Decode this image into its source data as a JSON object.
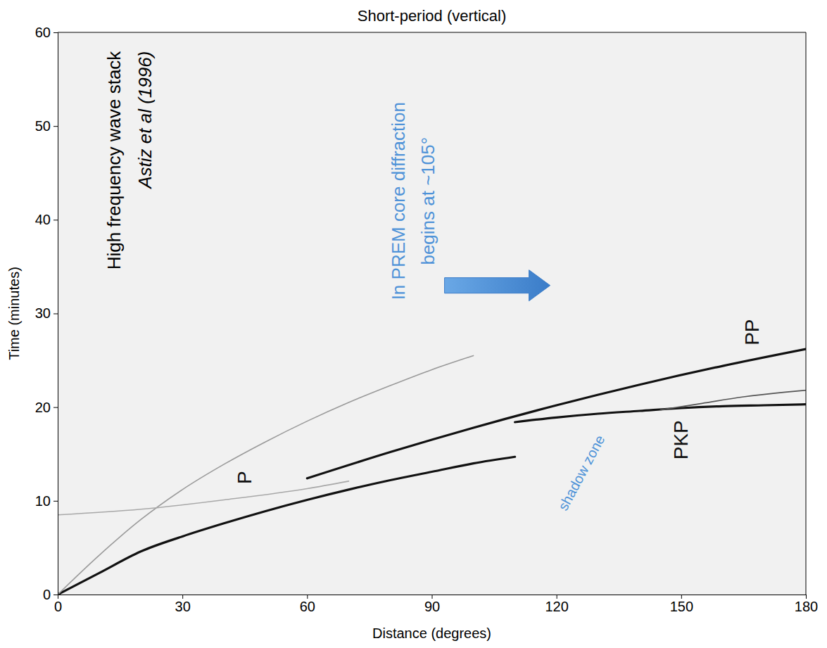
{
  "chart_data": {
    "type": "line",
    "title": "Short-period (vertical)",
    "x_label": "Distance (degrees)",
    "y_label": "Time (minutes)",
    "xlim": [
      0,
      180
    ],
    "xticks": [
      0,
      30,
      60,
      90,
      120,
      150,
      180
    ],
    "ylim": [
      0,
      60
    ],
    "yticks": [
      0,
      10,
      20,
      30,
      40,
      50,
      60
    ],
    "series": [
      {
        "name": "P",
        "color": "#111111",
        "x": [
          0,
          10,
          20,
          30,
          40,
          50,
          60,
          70,
          80,
          90,
          100,
          110
        ],
        "values": [
          0,
          2.3,
          4.6,
          6.2,
          7.6,
          8.9,
          10.1,
          11.2,
          12.2,
          13.1,
          14.0,
          14.7
        ],
        "label_x": 45,
        "label_y": 12.5
      },
      {
        "name": "PP",
        "color": "#111111",
        "x": [
          60,
          80,
          100,
          120,
          140,
          160,
          180
        ],
        "values": [
          12.4,
          15.2,
          17.8,
          20.2,
          22.4,
          24.4,
          26.2
        ],
        "label_x": 167,
        "label_y": 28
      },
      {
        "name": "PKP",
        "color": "#111111",
        "x": [
          110,
          120,
          130,
          140,
          150,
          160,
          170,
          180
        ],
        "values": [
          18.4,
          18.9,
          19.3,
          19.6,
          19.9,
          20.1,
          20.2,
          20.3
        ],
        "label_x": 150,
        "label_y": 16.5
      },
      {
        "color": "#555555",
        "x": [
          145,
          155,
          165,
          175,
          180
        ],
        "values": [
          19.7,
          20.4,
          21.1,
          21.6,
          21.8
        ]
      },
      {
        "color": "#9a9a9a",
        "x": [
          0,
          10,
          20,
          30,
          40,
          50,
          60,
          70,
          80,
          90,
          100
        ],
        "values": [
          0,
          4.2,
          8.0,
          11.2,
          13.9,
          16.3,
          18.5,
          20.5,
          22.3,
          24.0,
          25.5
        ]
      },
      {
        "color": "#a8a8a8",
        "x": [
          0,
          20,
          40,
          60,
          70
        ],
        "values": [
          8.5,
          9.1,
          10.1,
          11.3,
          12.1
        ]
      }
    ],
    "annotations": [
      {
        "text": "High frequency wave stack",
        "x": 13.5,
        "y": 58,
        "color": "#000000"
      },
      {
        "text": "Astiz et al (1996)",
        "x": 21,
        "y": 58,
        "color": "#000000"
      },
      {
        "text": "In PREM core diffraction",
        "x": 82,
        "y": 42,
        "color": "#4f93d8"
      },
      {
        "text": "begins at ~105°",
        "x": 89,
        "y": 42,
        "color": "#4f93d8"
      },
      {
        "text": "shadow zone",
        "x": 126,
        "y": 13,
        "color": "#4f93d8"
      }
    ]
  }
}
